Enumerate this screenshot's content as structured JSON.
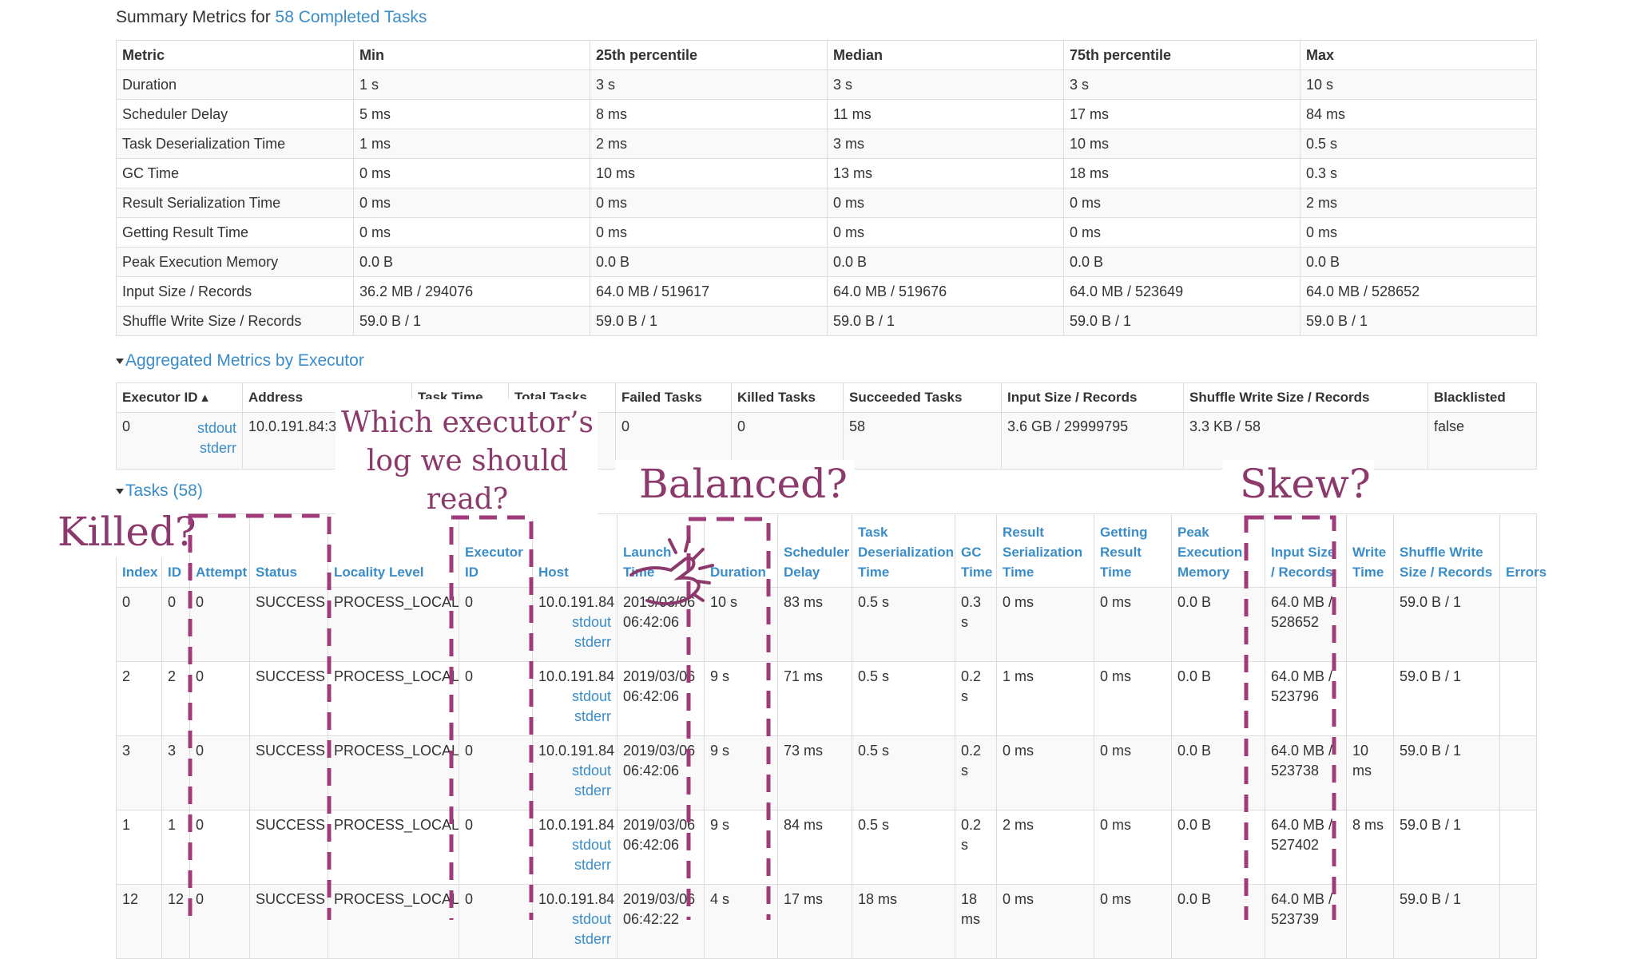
{
  "summary": {
    "heading_prefix": "Summary Metrics for ",
    "heading_link": "58 Completed Tasks",
    "columns": [
      "Metric",
      "Min",
      "25th percentile",
      "Median",
      "75th percentile",
      "Max"
    ],
    "rows": [
      [
        "Duration",
        "1 s",
        "3 s",
        "3 s",
        "3 s",
        "10 s"
      ],
      [
        "Scheduler Delay",
        "5 ms",
        "8 ms",
        "11 ms",
        "17 ms",
        "84 ms"
      ],
      [
        "Task Deserialization Time",
        "1 ms",
        "2 ms",
        "3 ms",
        "10 ms",
        "0.5 s"
      ],
      [
        "GC Time",
        "0 ms",
        "10 ms",
        "13 ms",
        "18 ms",
        "0.3 s"
      ],
      [
        "Result Serialization Time",
        "0 ms",
        "0 ms",
        "0 ms",
        "0 ms",
        "2 ms"
      ],
      [
        "Getting Result Time",
        "0 ms",
        "0 ms",
        "0 ms",
        "0 ms",
        "0 ms"
      ],
      [
        "Peak Execution Memory",
        "0.0 B",
        "0.0 B",
        "0.0 B",
        "0.0 B",
        "0.0 B"
      ],
      [
        "Input Size / Records",
        "36.2 MB / 294076",
        "64.0 MB / 519617",
        "64.0 MB / 519676",
        "64.0 MB / 523649",
        "64.0 MB / 528652"
      ],
      [
        "Shuffle Write Size / Records",
        "59.0 B / 1",
        "59.0 B / 1",
        "59.0 B / 1",
        "59.0 B / 1",
        "59.0 B / 1"
      ]
    ]
  },
  "aggregated": {
    "heading": "Aggregated Metrics by Executor",
    "columns": [
      "Executor ID ▴",
      "Address",
      "Task Time",
      "Total Tasks",
      "Failed Tasks",
      "Killed Tasks",
      "Succeeded Tasks",
      "Input Size / Records",
      "Shuffle Write Size / Records",
      "Blacklisted"
    ],
    "row": {
      "executor_id": "0",
      "stdout": "stdout",
      "stderr": "stderr",
      "address": "10.0.191.84:3",
      "task_time": "",
      "total_tasks": "",
      "failed_tasks": "0",
      "killed_tasks": "0",
      "succeeded_tasks": "58",
      "input_size": "3.6 GB / 29999795",
      "shuffle_write": "3.3 KB / 58",
      "blacklisted": "false"
    }
  },
  "tasks": {
    "heading": "Tasks (58)",
    "columns": [
      "Index",
      "ID",
      "Attempt",
      "Status",
      "Locality Level",
      "Executor ID",
      "Host",
      "Launch Time",
      "Duration",
      "Scheduler Delay",
      "Task Deserialization Time",
      "GC Time",
      "Result Serialization Time",
      "Getting Result Time",
      "Peak Execution Memory",
      "Input Size / Records",
      "Write Time",
      "Shuffle Write Size / Records",
      "Errors"
    ],
    "rows": [
      {
        "index": "0",
        "id": "0",
        "attempt": "0",
        "status": "SUCCESS",
        "locality": "PROCESS_LOCAL",
        "executor": "0",
        "host": "10.0.191.84",
        "stdout": "stdout",
        "stderr": "stderr",
        "launch": "2019/03/06 06:42:06",
        "duration": "10 s",
        "sched_delay": "83 ms",
        "deser": "0.5 s",
        "gc": "0.3 s",
        "result_ser": "0 ms",
        "getting": "0 ms",
        "peak": "0.0 B",
        "input": "64.0 MB / 528652",
        "write_time": "",
        "shuffle": "59.0 B / 1",
        "errors": ""
      },
      {
        "index": "2",
        "id": "2",
        "attempt": "0",
        "status": "SUCCESS",
        "locality": "PROCESS_LOCAL",
        "executor": "0",
        "host": "10.0.191.84",
        "stdout": "stdout",
        "stderr": "stderr",
        "launch": "2019/03/06 06:42:06",
        "duration": "9 s",
        "sched_delay": "71 ms",
        "deser": "0.5 s",
        "gc": "0.2 s",
        "result_ser": "1 ms",
        "getting": "0 ms",
        "peak": "0.0 B",
        "input": "64.0 MB / 523796",
        "write_time": "",
        "shuffle": "59.0 B / 1",
        "errors": ""
      },
      {
        "index": "3",
        "id": "3",
        "attempt": "0",
        "status": "SUCCESS",
        "locality": "PROCESS_LOCAL",
        "executor": "0",
        "host": "10.0.191.84",
        "stdout": "stdout",
        "stderr": "stderr",
        "launch": "2019/03/06 06:42:06",
        "duration": "9 s",
        "sched_delay": "73 ms",
        "deser": "0.5 s",
        "gc": "0.2 s",
        "result_ser": "0 ms",
        "getting": "0 ms",
        "peak": "0.0 B",
        "input": "64.0 MB / 523738",
        "write_time": "10 ms",
        "shuffle": "59.0 B / 1",
        "errors": ""
      },
      {
        "index": "1",
        "id": "1",
        "attempt": "0",
        "status": "SUCCESS",
        "locality": "PROCESS_LOCAL",
        "executor": "0",
        "host": "10.0.191.84",
        "stdout": "stdout",
        "stderr": "stderr",
        "launch": "2019/03/06 06:42:06",
        "duration": "9 s",
        "sched_delay": "84 ms",
        "deser": "0.5 s",
        "gc": "0.2 s",
        "result_ser": "2 ms",
        "getting": "0 ms",
        "peak": "0.0 B",
        "input": "64.0 MB / 527402",
        "write_time": "8 ms",
        "shuffle": "59.0 B / 1",
        "errors": ""
      },
      {
        "index": "12",
        "id": "12",
        "attempt": "0",
        "status": "SUCCESS",
        "locality": "PROCESS_LOCAL",
        "executor": "0",
        "host": "10.0.191.84",
        "stdout": "stdout",
        "stderr": "stderr",
        "launch": "2019/03/06 06:42:22",
        "duration": "4 s",
        "sched_delay": "17 ms",
        "deser": "18 ms",
        "gc": "18 ms",
        "result_ser": "0 ms",
        "getting": "0 ms",
        "peak": "0.0 B",
        "input": "64.0 MB / 523739",
        "write_time": "",
        "shuffle": "59.0 B / 1",
        "errors": ""
      }
    ]
  },
  "annotations": {
    "killed": "Killed?",
    "which_executor": "Which executor’s log we should read?",
    "balanced": "Balanced?",
    "skew": "Skew?",
    "color": "#8b3a6b"
  },
  "colors": {
    "link": "#3a8dc9",
    "border": "#dddddd",
    "stripe": "#f9f9f9",
    "annotation": "#8b3a6b"
  }
}
